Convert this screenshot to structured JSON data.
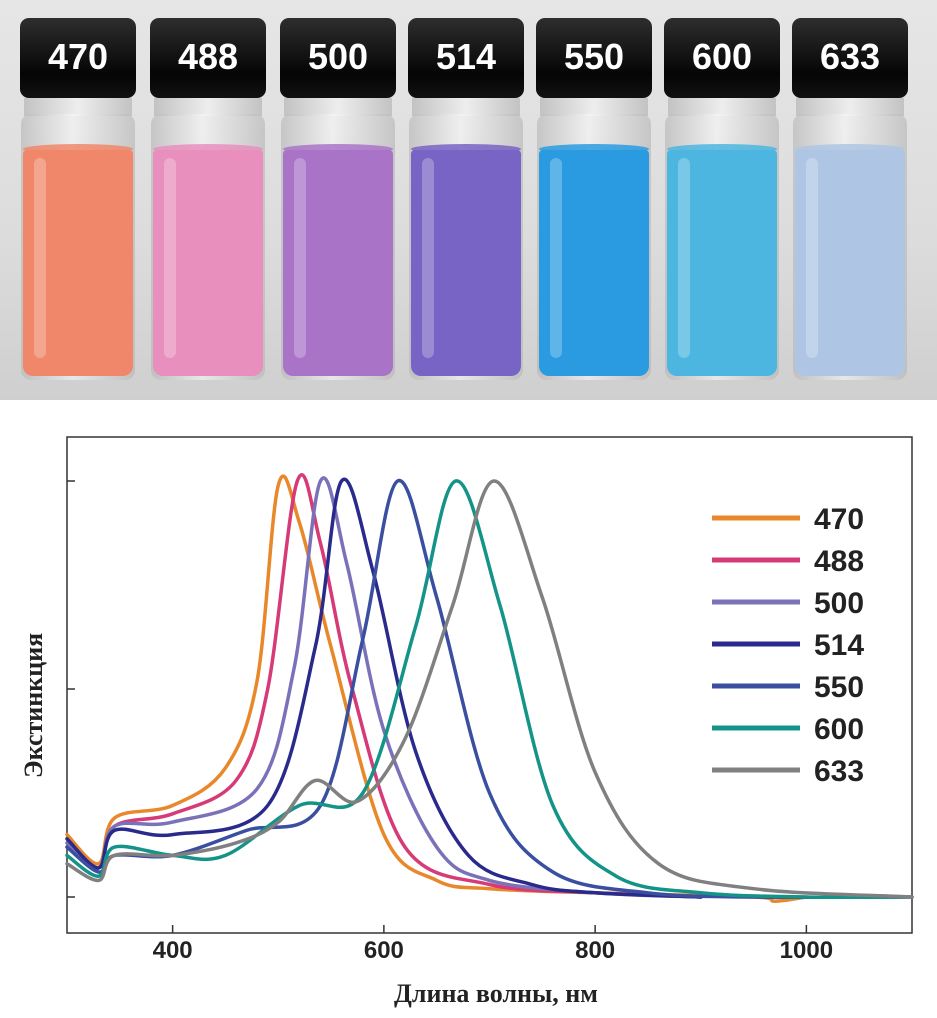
{
  "photo": {
    "vials": [
      {
        "label": "470",
        "color": "#f0876a"
      },
      {
        "label": "488",
        "color": "#e88fbe"
      },
      {
        "label": "500",
        "color": "#a974c8"
      },
      {
        "label": "514",
        "color": "#7864c4"
      },
      {
        "label": "550",
        "color": "#2a9be0"
      },
      {
        "label": "600",
        "color": "#4cb6e0"
      },
      {
        "label": "633",
        "color": "#aec6e4"
      }
    ]
  },
  "chart_data": {
    "type": "line",
    "title": "",
    "xlabel": "Длина волны, нм",
    "ylabel": "Экстинкция",
    "xlim": [
      300,
      1100
    ],
    "ylim": [
      0,
      1.0
    ],
    "x_ticks": [
      400,
      600,
      800,
      1000
    ],
    "y_tick_labels_shown": false,
    "legend_position": "right",
    "series": [
      {
        "name": "470",
        "color": "#e8882a",
        "peak_x": 505,
        "peak_y": 1.0,
        "x": [
          300,
          330,
          345,
          400,
          450,
          480,
          500,
          520,
          550,
          600,
          650,
          700,
          800,
          950,
          970,
          1000
        ],
        "y": [
          0.15,
          0.08,
          0.19,
          0.22,
          0.31,
          0.52,
          0.99,
          0.9,
          0.6,
          0.15,
          0.04,
          0.02,
          0.01,
          0.0,
          -0.01,
          0.0
        ]
      },
      {
        "name": "488",
        "color": "#d63a77",
        "peak_x": 518,
        "peak_y": 1.0,
        "x": [
          300,
          330,
          345,
          400,
          460,
          490,
          518,
          540,
          570,
          620,
          700,
          800,
          900
        ],
        "y": [
          0.12,
          0.07,
          0.17,
          0.2,
          0.28,
          0.5,
          1.0,
          0.85,
          0.5,
          0.12,
          0.03,
          0.01,
          0.0
        ]
      },
      {
        "name": "500",
        "color": "#7a72b8",
        "peak_x": 540,
        "peak_y": 1.0,
        "x": [
          300,
          330,
          345,
          400,
          480,
          515,
          540,
          565,
          600,
          650,
          700,
          800,
          900
        ],
        "y": [
          0.13,
          0.07,
          0.17,
          0.18,
          0.26,
          0.55,
          1.0,
          0.8,
          0.4,
          0.12,
          0.04,
          0.01,
          0.0
        ]
      },
      {
        "name": "514",
        "color": "#2a2a8c",
        "peak_x": 560,
        "peak_y": 1.0,
        "x": [
          300,
          330,
          345,
          400,
          490,
          535,
          560,
          590,
          630,
          680,
          740,
          800,
          900
        ],
        "y": [
          0.14,
          0.07,
          0.16,
          0.15,
          0.22,
          0.6,
          1.0,
          0.78,
          0.35,
          0.1,
          0.03,
          0.01,
          0.0
        ]
      },
      {
        "name": "550",
        "color": "#3a4fa0",
        "peak_x": 613,
        "peak_y": 1.0,
        "x": [
          300,
          330,
          345,
          400,
          470,
          540,
          580,
          613,
          650,
          700,
          760,
          850,
          950,
          1100
        ],
        "y": [
          0.12,
          0.06,
          0.1,
          0.1,
          0.16,
          0.22,
          0.62,
          1.0,
          0.72,
          0.25,
          0.06,
          0.01,
          0.0,
          0.0
        ]
      },
      {
        "name": "600",
        "color": "#149488",
        "peak_x": 668,
        "peak_y": 1.0,
        "x": [
          300,
          330,
          345,
          400,
          450,
          520,
          580,
          630,
          668,
          710,
          760,
          820,
          900,
          1000,
          1100
        ],
        "y": [
          0.1,
          0.05,
          0.12,
          0.1,
          0.1,
          0.22,
          0.25,
          0.65,
          1.0,
          0.7,
          0.22,
          0.05,
          0.01,
          0.0,
          0.0
        ]
      },
      {
        "name": "633",
        "color": "#808080",
        "peak_x": 704,
        "peak_y": 1.0,
        "x": [
          300,
          330,
          345,
          400,
          460,
          500,
          535,
          575,
          620,
          665,
          704,
          750,
          800,
          860,
          950,
          1100
        ],
        "y": [
          0.08,
          0.04,
          0.1,
          0.1,
          0.13,
          0.18,
          0.28,
          0.23,
          0.38,
          0.7,
          1.0,
          0.72,
          0.3,
          0.08,
          0.02,
          0.0
        ]
      }
    ]
  }
}
